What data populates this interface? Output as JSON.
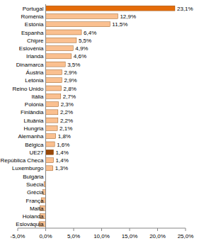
{
  "chart_data": {
    "type": "bar",
    "orientation": "horizontal",
    "data_labels": true,
    "grid": false,
    "categories": [
      "Portugal",
      "Roménia",
      "Estónia",
      "Espanha",
      "Chipre",
      "Eslovénia",
      "Irlanda",
      "Dinamarca",
      "Áustria",
      "Letónia",
      "Reino Unido",
      "Itália",
      "Polónia",
      "Finlândia",
      "Lituânia",
      "Hungria",
      "Alemanha",
      "Bélgica",
      "UE27",
      "República Checa",
      "Luxemburgo",
      "Bulgária",
      "Suécia",
      "Grécia",
      "França",
      "Malta",
      "Holanda",
      "Eslováquia"
    ],
    "values": [
      23.1,
      12.9,
      11.5,
      6.4,
      5.5,
      4.9,
      4.6,
      3.5,
      2.9,
      2.9,
      2.8,
      2.7,
      2.3,
      2.2,
      2.2,
      2.1,
      1.8,
      1.6,
      1.4,
      1.4,
      1.3,
      0,
      -0.3,
      -0.5,
      -0.8,
      -1.0,
      -1.0,
      -1.2
    ],
    "value_labels": [
      "23,1%",
      "12,9%",
      "11,5%",
      "6,4%",
      "5,5%",
      "4,9%",
      "4,6%",
      "3,5%",
      "2,9%",
      "2,9%",
      "2,8%",
      "2,7%",
      "2,3%",
      "2,2%",
      "2,2%",
      "2,1%",
      "1,8%",
      "1,6%",
      "1,4%",
      "1,4%",
      "1,3%",
      null,
      null,
      null,
      null,
      null,
      null,
      null
    ],
    "colors": [
      "#e46c0a",
      "#fac090",
      "#fac090",
      "#fac090",
      "#fac090",
      "#fac090",
      "#fac090",
      "#fac090",
      "#fac090",
      "#fac090",
      "#fac090",
      "#fac090",
      "#fac090",
      "#fac090",
      "#fac090",
      "#fac090",
      "#fac090",
      "#fac090",
      "#984807",
      "#fac090",
      "#fac090",
      "#fac090",
      "#fac090",
      "#fac090",
      "#fac090",
      "#fac090",
      "#fac090",
      "#fac090"
    ],
    "xlim": [
      -5,
      25
    ],
    "xticks": [
      {
        "value": -5,
        "label": "-5,0%"
      },
      {
        "value": 0,
        "label": "0,0%"
      },
      {
        "value": 5,
        "label": "5,0%"
      },
      {
        "value": 10,
        "label": "10,0%"
      },
      {
        "value": 15,
        "label": "15,0%"
      },
      {
        "value": 20,
        "label": "20,0%"
      },
      {
        "value": 25,
        "label": "25,0%"
      }
    ]
  }
}
